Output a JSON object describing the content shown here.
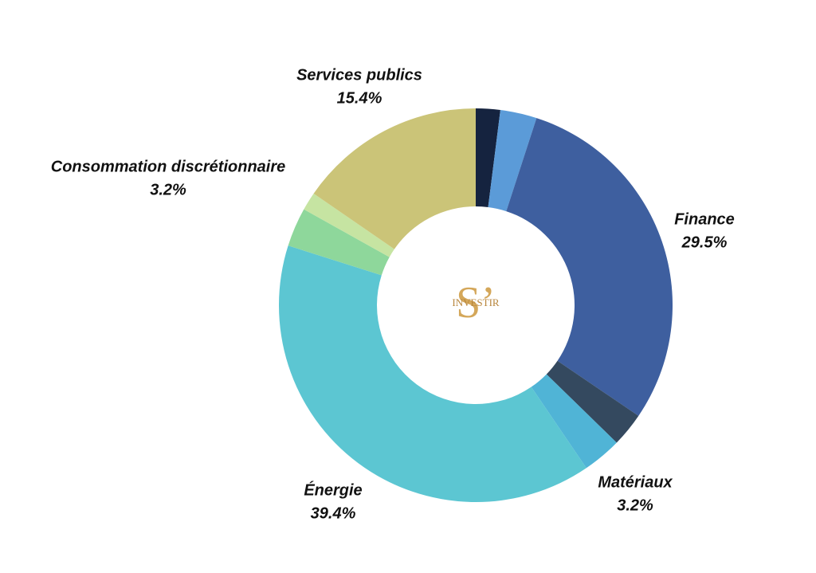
{
  "chart_data": {
    "type": "donut",
    "categories": [
      null,
      null,
      "Finance",
      null,
      "Matériaux",
      "Énergie",
      "Consommation discrétionnaire",
      null,
      "Services publics"
    ],
    "values": [
      2.0,
      3.0,
      29.5,
      2.8,
      3.2,
      39.4,
      3.2,
      1.5,
      15.4
    ],
    "value_labels": [
      null,
      null,
      "29.5%",
      null,
      "3.2%",
      "39.4%",
      "3.2%",
      null,
      "15.4%"
    ],
    "colors": [
      "#15233f",
      "#5b9bd8",
      "#3e5f9f",
      "#34495f",
      "#50b4d6",
      "#5cc6d2",
      "#8ed79b",
      "#c6e4a2",
      "#cbc478"
    ],
    "center_logo": {
      "mark": "S’",
      "text": "INVESTIR"
    }
  }
}
